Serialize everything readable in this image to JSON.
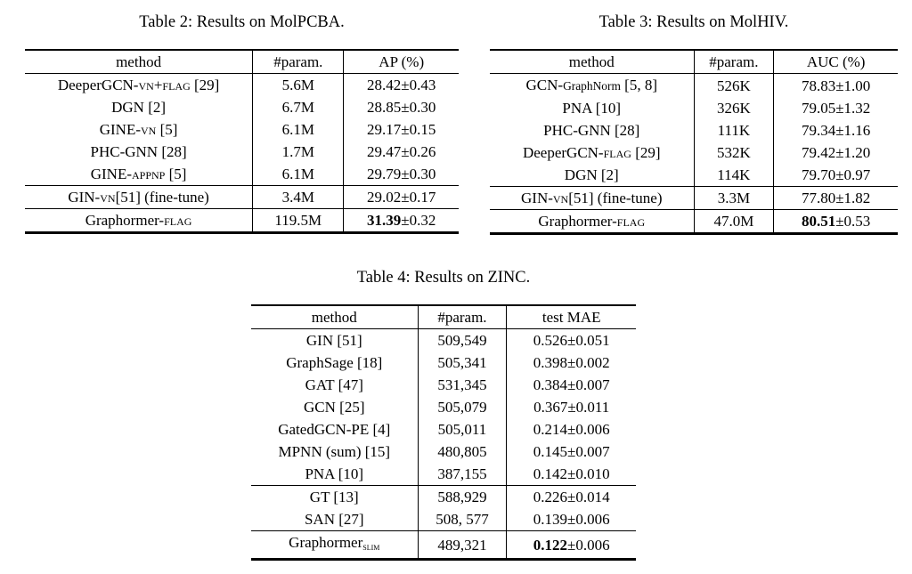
{
  "page": {
    "background_color": "#ffffff",
    "text_color": "#000000"
  },
  "tables": [
    {
      "name": "molpcba-results",
      "caption": "Table 2: Results on MolPCBA.",
      "columns": [
        "method",
        "#param.",
        "AP (%)"
      ],
      "col_widths": [
        "52.5%",
        "21%",
        "26.5%"
      ],
      "rows": [
        {
          "cells": [
            [
              {
                "t": "DeeperGCN-"
              },
              {
                "t": "vn+flag",
                "sc": true
              },
              {
                "t": " [29]"
              }
            ],
            "5.6M",
            "28.42±0.43"
          ],
          "rule_above": false
        },
        {
          "cells": [
            "DGN [2]",
            "6.7M",
            "28.85±0.30"
          ],
          "rule_above": false
        },
        {
          "cells": [
            [
              {
                "t": "GINE-"
              },
              {
                "t": "vn",
                "sc": true
              },
              {
                "t": " [5]"
              }
            ],
            "6.1M",
            "29.17±0.15"
          ],
          "rule_above": false
        },
        {
          "cells": [
            "PHC-GNN [28]",
            "1.7M",
            "29.47±0.26"
          ],
          "rule_above": false
        },
        {
          "cells": [
            [
              {
                "t": "GINE-"
              },
              {
                "t": "appnp",
                "sc": true
              },
              {
                "t": " [5]"
              }
            ],
            "6.1M",
            "29.79±0.30"
          ],
          "rule_above": false
        },
        {
          "cells": [
            [
              {
                "t": "GIN-"
              },
              {
                "t": "vn",
                "sc": true
              },
              {
                "t": "[51] (fine-tune)"
              }
            ],
            "3.4M",
            "29.02±0.17"
          ],
          "rule_above": true
        },
        {
          "cells": [
            [
              {
                "t": "Graphormer-"
              },
              {
                "t": "flag",
                "sc": true
              }
            ],
            "119.5M",
            [
              {
                "t": "31.39",
                "b": true
              },
              {
                "t": "±0.32"
              }
            ]
          ],
          "rule_above": true
        }
      ]
    },
    {
      "name": "molhiv-results",
      "caption": "Table 3: Results on MolHIV.",
      "columns": [
        "method",
        "#param.",
        "AUC (%)"
      ],
      "col_widths": [
        "50%",
        "19.6%",
        "30.4%"
      ],
      "rows": [
        {
          "cells": [
            [
              {
                "t": "GCN-"
              },
              {
                "t": "GraphNorm",
                "small": true
              },
              {
                "t": " [5, 8]"
              }
            ],
            "526K",
            "78.83±1.00"
          ],
          "rule_above": false
        },
        {
          "cells": [
            "PNA [10]",
            "326K",
            "79.05±1.32"
          ],
          "rule_above": false
        },
        {
          "cells": [
            "PHC-GNN [28]",
            "111K",
            "79.34±1.16"
          ],
          "rule_above": false
        },
        {
          "cells": [
            [
              {
                "t": "DeeperGCN-"
              },
              {
                "t": "flag",
                "sc": true
              },
              {
                "t": " [29]"
              }
            ],
            "532K",
            "79.42±1.20"
          ],
          "rule_above": false
        },
        {
          "cells": [
            "DGN [2]",
            "114K",
            "79.70±0.97"
          ],
          "rule_above": false
        },
        {
          "cells": [
            [
              {
                "t": "GIN-"
              },
              {
                "t": "vn",
                "sc": true
              },
              {
                "t": "[51] (fine-tune)"
              }
            ],
            "3.3M",
            "77.80±1.82"
          ],
          "rule_above": true
        },
        {
          "cells": [
            [
              {
                "t": "Graphormer-"
              },
              {
                "t": "flag",
                "sc": true
              }
            ],
            "47.0M",
            [
              {
                "t": "80.51",
                "b": true
              },
              {
                "t": "±0.53"
              }
            ]
          ],
          "rule_above": true
        }
      ]
    },
    {
      "name": "zinc-results",
      "caption": "Table 4: Results on ZINC.",
      "columns": [
        "method",
        "#param.",
        "test MAE"
      ],
      "col_widths": [
        "43.3%",
        "23.1%",
        "33.6%"
      ],
      "rows": [
        {
          "cells": [
            "GIN [51]",
            "509,549",
            "0.526±0.051"
          ],
          "rule_above": false
        },
        {
          "cells": [
            "GraphSage [18]",
            "505,341",
            "0.398±0.002"
          ],
          "rule_above": false
        },
        {
          "cells": [
            "GAT [47]",
            "531,345",
            "0.384±0.007"
          ],
          "rule_above": false
        },
        {
          "cells": [
            "GCN [25]",
            "505,079",
            "0.367±0.011"
          ],
          "rule_above": false
        },
        {
          "cells": [
            "GatedGCN-PE [4]",
            "505,011",
            "0.214±0.006"
          ],
          "rule_above": false
        },
        {
          "cells": [
            "MPNN (sum) [15]",
            "480,805",
            "0.145±0.007"
          ],
          "rule_above": false
        },
        {
          "cells": [
            "PNA [10]",
            "387,155",
            "0.142±0.010"
          ],
          "rule_above": false
        },
        {
          "cells": [
            "GT [13]",
            "588,929",
            "0.226±0.014"
          ],
          "rule_above": true
        },
        {
          "cells": [
            "SAN [27]",
            "508, 577",
            "0.139±0.006"
          ],
          "rule_above": false
        },
        {
          "cells": [
            [
              {
                "t": "Graphormer"
              },
              {
                "t": "slim",
                "sc": true,
                "sub": true
              }
            ],
            "489,321",
            [
              {
                "t": "0.122",
                "b": true
              },
              {
                "t": "±0.006"
              }
            ]
          ],
          "rule_above": true
        }
      ]
    }
  ]
}
